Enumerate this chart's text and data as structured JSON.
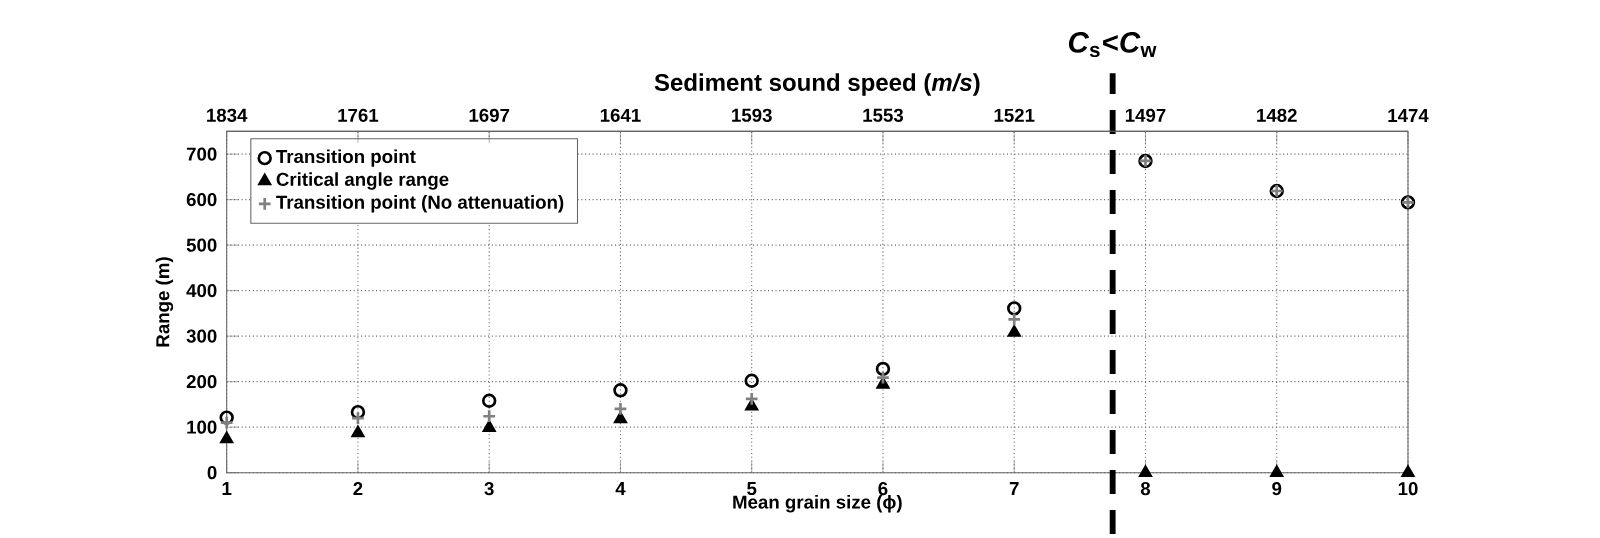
{
  "chart_data": {
    "type": "scatter",
    "xlabel": "Mean grain size (ϕ)",
    "ylabel": "Range (m)",
    "x2label": "Sediment sound speed (*m/s*)",
    "x": [
      1,
      2,
      3,
      4,
      5,
      6,
      7,
      8,
      9,
      10
    ],
    "series": [
      {
        "name": "Transition point",
        "color": "#000000",
        "marker": "circle",
        "values": [
          121,
          133,
          158,
          181,
          202,
          228,
          361,
          685,
          619,
          594
        ]
      },
      {
        "name": "Critical angle range",
        "color": "#000000",
        "marker": "triangle",
        "values": [
          74,
          87,
          99,
          118,
          146,
          194,
          308,
          0,
          0,
          0
        ]
      },
      {
        "name": "Transition point (No attenuation)",
        "color": "#808080",
        "marker": "cross",
        "values": [
          110,
          120,
          124,
          140,
          162,
          209,
          337,
          685,
          619,
          594
        ]
      }
    ],
    "xlim": [
      1,
      10
    ],
    "xticks": [
      1,
      2,
      3,
      4,
      5,
      6,
      7,
      8,
      9,
      10
    ],
    "ylim": [
      0,
      750
    ],
    "yticks": [
      0,
      100,
      200,
      300,
      400,
      500,
      600,
      700
    ],
    "annotations": [
      "1834",
      "1761",
      "1697",
      "1641",
      "1593",
      "1553",
      "1521",
      "1497",
      "1482",
      "1474"
    ],
    "ref_lines": [
      {
        "axis": "x",
        "value": 7.75,
        "label": "*C*$_{s}$<*C*$_{w}$",
        "color": "#000000",
        "line_style": "dashed"
      }
    ],
    "grid": true,
    "legend": "top left"
  }
}
